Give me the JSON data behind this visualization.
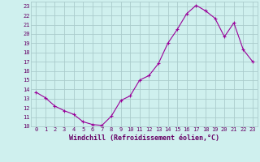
{
  "x": [
    0,
    1,
    2,
    3,
    4,
    5,
    6,
    7,
    8,
    9,
    10,
    11,
    12,
    13,
    14,
    15,
    16,
    17,
    18,
    19,
    20,
    21,
    22,
    23
  ],
  "y": [
    13.7,
    13.1,
    12.2,
    11.7,
    11.3,
    10.5,
    10.2,
    10.1,
    11.1,
    12.8,
    13.3,
    15.0,
    15.5,
    16.8,
    19.0,
    20.5,
    22.2,
    23.1,
    22.5,
    21.7,
    19.7,
    21.2,
    18.3,
    17.0
  ],
  "line_color": "#990099",
  "marker": "+",
  "marker_size": 3,
  "bg_color": "#cff0ee",
  "grid_color": "#aacccc",
  "xlabel": "Windchill (Refroidissement éolien,°C)",
  "ylim": [
    10,
    23.5
  ],
  "xlim": [
    -0.5,
    23.5
  ],
  "yticks": [
    10,
    11,
    12,
    13,
    14,
    15,
    16,
    17,
    18,
    19,
    20,
    21,
    22,
    23
  ],
  "xticks": [
    0,
    1,
    2,
    3,
    4,
    5,
    6,
    7,
    8,
    9,
    10,
    11,
    12,
    13,
    14,
    15,
    16,
    17,
    18,
    19,
    20,
    21,
    22,
    23
  ],
  "tick_fontsize": 5.0,
  "xlabel_fontsize": 6.0
}
